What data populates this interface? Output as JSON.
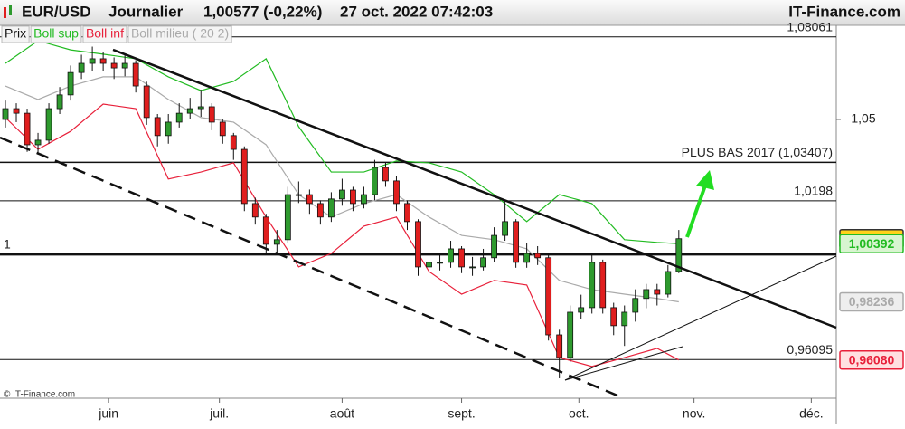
{
  "header": {
    "symbol": "EUR/USD",
    "period": "Journalier",
    "quote": "1,00577 (-0,22%)",
    "datetime": "27 oct. 2022 07:42:03",
    "brand": "IT-Finance.com"
  },
  "footer": "© IT-Finance.com",
  "chart_data": {
    "type": "candlestick",
    "xlim": [
      -0.5,
      76.5
    ],
    "ylim": [
      0.9466,
      1.0849
    ],
    "xticks": [
      {
        "value": 9.5,
        "label": "juin"
      },
      {
        "value": 19.7,
        "label": "juil."
      },
      {
        "value": 31,
        "label": "août"
      },
      {
        "value": 42,
        "label": "sept."
      },
      {
        "value": 52.8,
        "label": "oct."
      },
      {
        "value": 63.4,
        "label": "nov."
      },
      {
        "value": 74.2,
        "label": "déc."
      }
    ],
    "yticks": [
      {
        "value": 1.05,
        "label": "1,05"
      }
    ],
    "levels": [
      {
        "value": 1.08061,
        "label": "1,08061",
        "side": "right",
        "width": 1
      },
      {
        "value": 1.03407,
        "label": "PLUS BAS 2017 (1,03407)",
        "side": "right",
        "width": 1.5
      },
      {
        "value": 1.0198,
        "label": "1,0198",
        "side": "right",
        "width": 1
      },
      {
        "value": 1,
        "label": "1",
        "side": "left",
        "width": 3
      },
      {
        "value": 0.96095,
        "label": "0,96095",
        "side": "right",
        "width": 1
      }
    ],
    "candles": {
      "name": "Prix",
      "up_color": "#2e9a2e",
      "down_color": "#e01e1e",
      "box_fill": "#ffd21a",
      "last_label": "1,00577",
      "x": [
        0,
        1,
        2,
        3,
        4,
        5,
        6,
        7,
        8,
        9,
        10,
        11,
        12,
        13,
        14,
        15,
        16,
        17,
        18,
        19,
        20,
        21,
        22,
        23,
        24,
        25,
        26,
        27,
        28,
        29,
        30,
        31,
        32,
        33,
        34,
        35,
        36,
        37,
        38,
        39,
        40,
        41,
        42,
        43,
        44,
        45,
        46,
        47,
        48,
        49,
        50,
        51,
        52,
        53,
        54,
        55,
        56,
        57,
        58,
        59,
        60,
        61,
        62
      ],
      "open": [
        1.05,
        1.054,
        1.0523,
        1.0406,
        1.0423,
        1.054,
        1.0591,
        1.0674,
        1.0708,
        1.0725,
        1.0708,
        1.0691,
        1.0708,
        1.0624,
        1.0507,
        1.044,
        1.049,
        1.0523,
        1.054,
        1.0547,
        1.049,
        1.044,
        1.0389,
        1.0188,
        1.0138,
        1.0037,
        1.0054,
        1.0221,
        1.0221,
        1.0188,
        1.0138,
        1.0205,
        1.0238,
        1.0188,
        1.0221,
        1.0322,
        1.0272,
        1.0188,
        1.0121,
        0.9953,
        0.997,
        0.997,
        1.002,
        0.9953,
        0.9953,
        0.9987,
        1.007,
        1.0121,
        0.997,
        1.0003,
        0.9987,
        0.9701,
        0.9617,
        0.9785,
        0.9802,
        0.997,
        0.9802,
        0.9735,
        0.9785,
        0.9836,
        0.9869,
        0.9852,
        0.9936
      ],
      "high": [
        1.057,
        1.056,
        1.054,
        1.045,
        1.056,
        1.062,
        1.07,
        1.074,
        1.077,
        1.075,
        1.073,
        1.074,
        1.072,
        1.064,
        1.052,
        1.052,
        1.056,
        1.058,
        1.061,
        1.056,
        1.05,
        1.045,
        1.04,
        1.021,
        1.015,
        1.009,
        1.025,
        1.027,
        1.024,
        1.02,
        1.023,
        1.028,
        1.025,
        1.025,
        1.035,
        1.034,
        1.029,
        1.02,
        1.013,
        1.001,
        1.0,
        1.005,
        1.003,
        0.999,
        1.002,
        1.01,
        1.02,
        1.013,
        1.004,
        1.003,
        1.0,
        0.972,
        0.981,
        0.985,
        1.0,
        0.998,
        0.982,
        0.981,
        0.987,
        0.989,
        0.989,
        0.996,
        1.009
      ],
      "low": [
        1.047,
        1.049,
        1.038,
        1.037,
        1.041,
        1.052,
        1.057,
        1.065,
        1.068,
        1.068,
        1.065,
        1.066,
        1.06,
        1.048,
        1.04,
        1.041,
        1.047,
        1.05,
        1.051,
        1.046,
        1.041,
        1.035,
        1.016,
        1.011,
        1.0,
        1.0,
        1.004,
        1.019,
        1.015,
        1.011,
        1.012,
        1.018,
        1.016,
        1.017,
        1.02,
        1.025,
        1.016,
        1.009,
        0.992,
        0.992,
        0.994,
        0.995,
        0.993,
        0.992,
        0.994,
        0.997,
        1.005,
        0.995,
        0.995,
        0.996,
        0.968,
        0.954,
        0.96,
        0.976,
        0.978,
        0.978,
        0.97,
        0.966,
        0.975,
        0.98,
        0.981,
        0.984,
        0.993
      ],
      "close": [
        1.054,
        1.0523,
        1.0406,
        1.0423,
        1.054,
        1.0591,
        1.0674,
        1.0708,
        1.0725,
        1.0708,
        1.0691,
        1.0708,
        1.0624,
        1.0507,
        1.044,
        1.049,
        1.0523,
        1.054,
        1.0547,
        1.049,
        1.044,
        1.0389,
        1.0188,
        1.0138,
        1.0037,
        1.0054,
        1.0221,
        1.0221,
        1.0188,
        1.0138,
        1.0205,
        1.0238,
        1.0188,
        1.0221,
        1.0322,
        1.0272,
        1.0188,
        1.0121,
        0.9953,
        0.997,
        0.997,
        1.002,
        0.9953,
        0.9953,
        0.9987,
        1.007,
        1.0121,
        0.997,
        1.0003,
        0.9987,
        0.9701,
        0.9617,
        0.9785,
        0.9802,
        0.997,
        0.9802,
        0.9735,
        0.9785,
        0.9836,
        0.9869,
        0.9852,
        0.9936,
        1.00577
      ]
    },
    "series": [
      {
        "name": "Boll sup",
        "color": "#22bb22",
        "box_fill": "#d8f5d0",
        "last_label": "1,00392",
        "x": [
          0,
          3,
          6,
          9,
          12,
          15,
          18,
          21,
          24,
          27,
          30,
          33,
          36,
          39,
          42,
          45,
          48,
          51,
          54,
          57,
          60,
          62
        ],
        "values": [
          1.0708,
          1.0792,
          1.0758,
          1.0742,
          1.0725,
          1.0658,
          1.0607,
          1.0641,
          1.0725,
          1.0473,
          1.0305,
          1.0305,
          1.0346,
          1.0339,
          1.0305,
          1.0221,
          1.0121,
          1.0221,
          1.0188,
          1.0054,
          1.0044,
          1.00392
        ]
      },
      {
        "name": "Boll inf",
        "color": "#e8203a",
        "box_fill": "#ffe0e0",
        "last_label": "0,96080",
        "x": [
          0,
          3,
          6,
          9,
          12,
          15,
          18,
          21,
          24,
          27,
          30,
          33,
          36,
          39,
          42,
          45,
          48,
          51,
          54,
          57,
          60,
          62
        ],
        "values": [
          1.0507,
          1.0389,
          1.0456,
          1.0557,
          1.054,
          1.0279,
          1.0305,
          1.0339,
          1.0138,
          0.9953,
          1.0003,
          1.0104,
          1.0138,
          0.9936,
          0.9852,
          0.9903,
          0.9886,
          0.9617,
          0.9584,
          0.9617,
          0.9651,
          0.9608
        ]
      },
      {
        "name": "Boll milieu ( 20 2)",
        "color": "#aaaaaa",
        "box_fill": "#eeeeee",
        "last_label": "0,98236",
        "x": [
          0,
          3,
          6,
          9,
          12,
          15,
          18,
          21,
          24,
          27,
          30,
          33,
          36,
          39,
          42,
          45,
          48,
          51,
          54,
          57,
          60,
          62
        ],
        "values": [
          1.0624,
          1.0574,
          1.0624,
          1.0658,
          1.0658,
          1.0574,
          1.0507,
          1.049,
          1.0406,
          1.0221,
          1.0138,
          1.0188,
          1.0221,
          1.0138,
          1.007,
          1.0054,
          1.002,
          0.9903,
          0.9869,
          0.9852,
          0.9836,
          0.98236
        ]
      }
    ]
  }
}
